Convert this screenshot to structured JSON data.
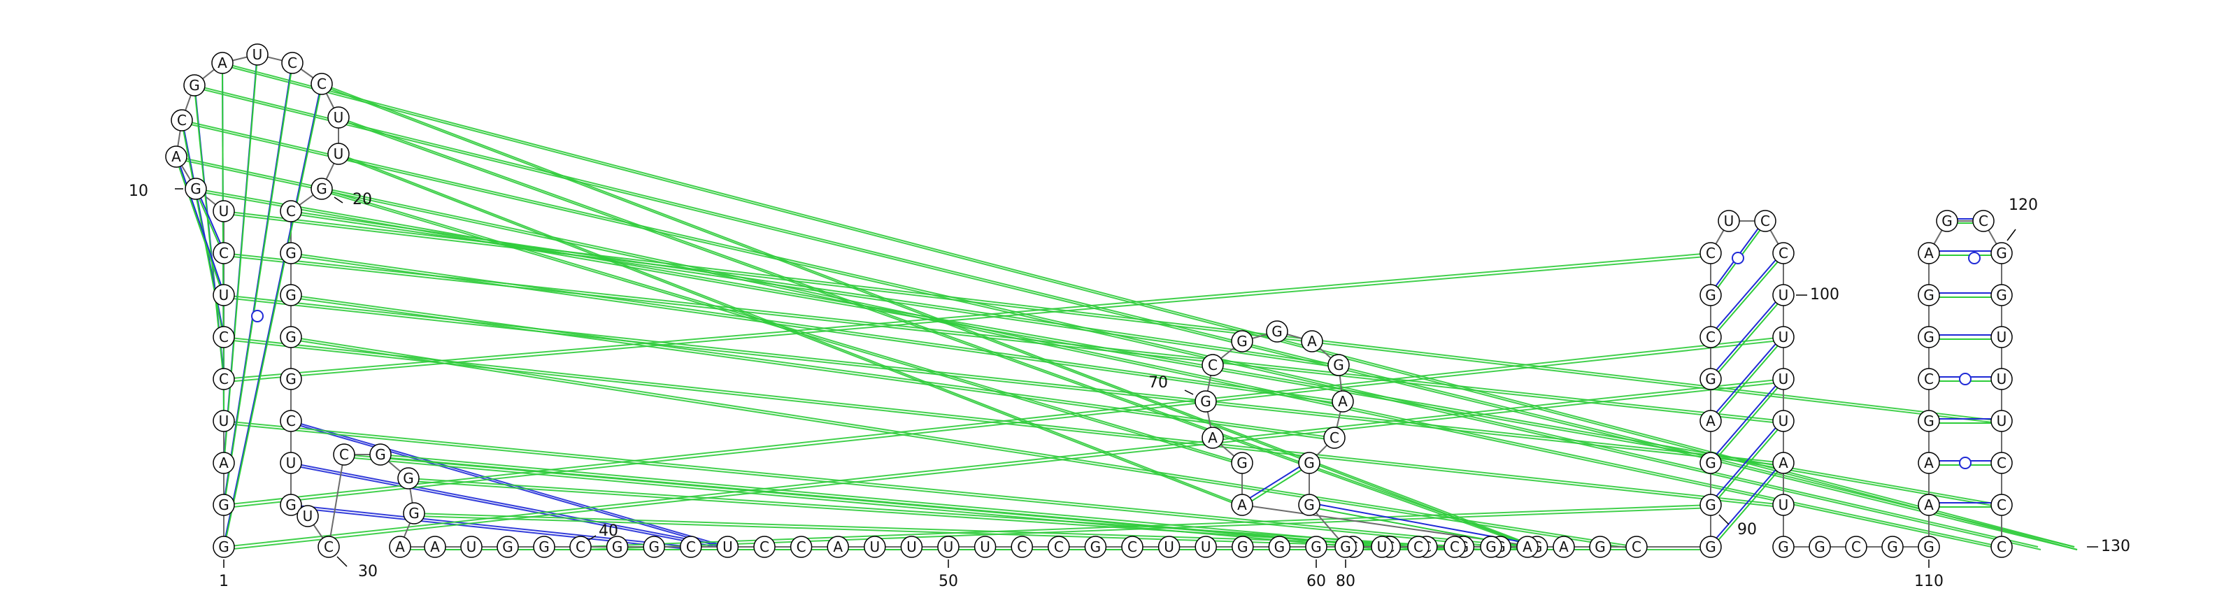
{
  "diagram": {
    "type": "rna-secondary-structure",
    "sequence": "GGAUCCUCUGACGAUCCUUGCGGGGCUGUCCGGGAAUGGCGGCUCCAUUUUCCGCUUGGGCCCGGGAGAGCGGAGACGGGUCCGAAGCGGGAGCGCUCCUUUUAUGGCGGAAGCGGAGCGGUUUCCC",
    "numbers": [
      {
        "n": 1,
        "text": "1"
      },
      {
        "n": 10,
        "text": "10"
      },
      {
        "n": 20,
        "text": "20"
      },
      {
        "n": 30,
        "text": "30"
      },
      {
        "n": 40,
        "text": "40"
      },
      {
        "n": 50,
        "text": "50"
      },
      {
        "n": 60,
        "text": "60"
      },
      {
        "n": 70,
        "text": "70"
      },
      {
        "n": 80,
        "text": "80"
      },
      {
        "n": 90,
        "text": "90"
      },
      {
        "n": 100,
        "text": "100"
      },
      {
        "n": 110,
        "text": "110"
      },
      {
        "n": 120,
        "text": "120"
      },
      {
        "n": 130,
        "text": "130"
      }
    ],
    "helices": [
      {
        "outer": [
          1,
          17
        ],
        "inner": [
          8,
          24
        ],
        "style": "wc"
      },
      {
        "outer": [
          66,
          79
        ],
        "inner": [
          67,
          78
        ],
        "style": "wc"
      },
      {
        "outer": [
          89,
          104
        ],
        "inner": [
          95,
          98
        ],
        "style": "wc"
      },
      {
        "outer": [
          111,
          126
        ],
        "inner": [
          118,
          121
        ],
        "style": "wc"
      }
    ],
    "wobble_pairs": [
      [
        4,
        21
      ],
      [
        95,
        98
      ],
      [
        114,
        123
      ],
      [
        118,
        121
      ],
      [
        112,
        125
      ]
    ],
    "tertiary_pairs": [
      {
        "a": 26,
        "b": 44,
        "color": "#1f2ad6"
      },
      {
        "a": 27,
        "b": 44,
        "color": "#1f2ad6"
      },
      {
        "a": 28,
        "b": 43,
        "color": "#1f2ad6"
      },
      {
        "a": 17,
        "b": 66,
        "color": "#2ecc3a"
      },
      {
        "a": 18,
        "b": 66,
        "color": "#2ecc3a"
      },
      {
        "a": 19,
        "b": 67,
        "color": "#2ecc3a"
      },
      {
        "a": 20,
        "b": 68,
        "color": "#2ecc3a"
      },
      {
        "a": 21,
        "b": 75,
        "color": "#2ecc3a"
      },
      {
        "a": 22,
        "b": 76,
        "color": "#2ecc3a"
      },
      {
        "a": 23,
        "b": 77,
        "color": "#2ecc3a"
      },
      {
        "a": 24,
        "b": 88,
        "color": "#2ecc3a"
      },
      {
        "a": 4,
        "b": 85,
        "color": "#2ecc3a"
      },
      {
        "a": 5,
        "b": 96,
        "color": "#2ecc3a"
      },
      {
        "a": 6,
        "b": 105,
        "color": "#2ecc3a"
      },
      {
        "a": 7,
        "b": 104,
        "color": "#2ecc3a"
      },
      {
        "a": 8,
        "b": 103,
        "color": "#2ecc3a"
      },
      {
        "a": 1,
        "b": 102,
        "color": "#2ecc3a"
      },
      {
        "a": 2,
        "b": 101,
        "color": "#2ecc3a"
      },
      {
        "a": 31,
        "b": 81,
        "color": "#2ecc3a"
      },
      {
        "a": 32,
        "b": 82,
        "color": "#2ecc3a"
      },
      {
        "a": 33,
        "b": 83,
        "color": "#2ecc3a"
      },
      {
        "a": 34,
        "b": 84,
        "color": "#2ecc3a"
      },
      {
        "a": 35,
        "b": 85,
        "color": "#2ecc3a"
      },
      {
        "a": 36,
        "b": 86,
        "color": "#2ecc3a"
      },
      {
        "a": 37,
        "b": 87,
        "color": "#2ecc3a"
      },
      {
        "a": 38,
        "b": 88,
        "color": "#2ecc3a"
      },
      {
        "a": 39,
        "b": 89,
        "color": "#2ecc3a"
      },
      {
        "a": 40,
        "b": 90,
        "color": "#2ecc3a"
      },
      {
        "a": 9,
        "b": 124,
        "color": "#2ecc3a"
      },
      {
        "a": 10,
        "b": 126,
        "color": "#2ecc3a"
      },
      {
        "a": 11,
        "b": 127,
        "color": "#2ecc3a"
      },
      {
        "a": 12,
        "b": 128,
        "color": "#2ecc3a"
      },
      {
        "a": 13,
        "b": 129,
        "color": "#2ecc3a"
      },
      {
        "a": 14,
        "b": 130,
        "color": "#2ecc3a"
      }
    ],
    "colors": {
      "backbone": "#6b6b6b",
      "wc_pair": "#1f2ad6",
      "tertiary_green": "#2ecc3a",
      "wobble_marker": "#1f2ad6",
      "noncanonical_marker": "#2ecc3a"
    }
  }
}
